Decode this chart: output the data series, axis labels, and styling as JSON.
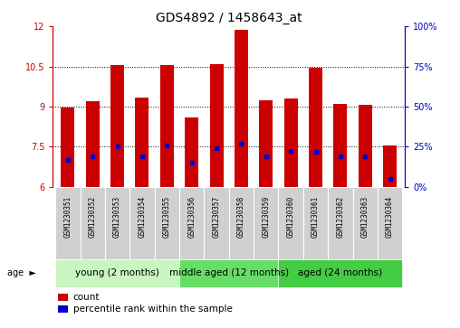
{
  "title": "GDS4892 / 1458643_at",
  "samples": [
    "GSM1230351",
    "GSM1230352",
    "GSM1230353",
    "GSM1230354",
    "GSM1230355",
    "GSM1230356",
    "GSM1230357",
    "GSM1230358",
    "GSM1230359",
    "GSM1230360",
    "GSM1230361",
    "GSM1230362",
    "GSM1230363",
    "GSM1230364"
  ],
  "counts": [
    8.95,
    9.2,
    10.55,
    9.35,
    10.55,
    8.6,
    10.6,
    11.85,
    9.25,
    9.3,
    10.45,
    9.1,
    9.05,
    7.55
  ],
  "percentiles": [
    7.0,
    7.15,
    7.5,
    7.15,
    7.55,
    6.9,
    7.45,
    7.6,
    7.15,
    7.35,
    7.3,
    7.15,
    7.15,
    6.3
  ],
  "y_min": 6,
  "y_max": 12,
  "y_ticks_left": [
    6,
    7.5,
    9,
    10.5,
    12
  ],
  "y_ticks_right_vals": [
    0,
    25,
    50,
    75,
    100
  ],
  "bar_color": "#cc0000",
  "percentile_color": "#0000cc",
  "bar_width": 0.55,
  "groups": [
    {
      "label": "young (2 months)",
      "start": 0,
      "end": 5
    },
    {
      "label": "middle aged (12 months)",
      "start": 5,
      "end": 9
    },
    {
      "label": "aged (24 months)",
      "start": 9,
      "end": 14
    }
  ],
  "group_colors": [
    "#c8f5c0",
    "#66dd66",
    "#44cc44"
  ],
  "legend_count_label": "count",
  "legend_pct_label": "percentile rank within the sample",
  "age_label": "age",
  "background_color": "#ffffff",
  "title_fontsize": 10,
  "tick_fontsize": 7,
  "sample_fontsize": 5.5,
  "group_label_fontsize": 7.5
}
